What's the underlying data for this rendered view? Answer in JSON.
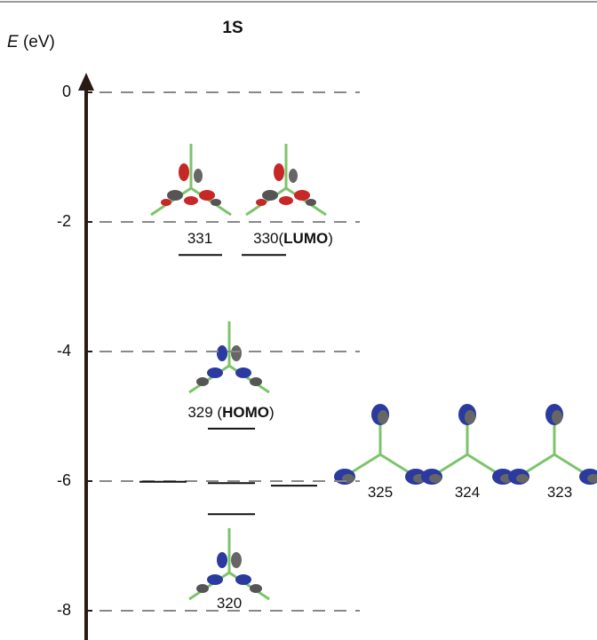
{
  "chart_data": {
    "type": "levels",
    "title": "1S",
    "y_label_parts": [
      "E",
      " (eV)"
    ],
    "ylim": [
      -8.45,
      0.25
    ],
    "yticks": [
      0,
      -2,
      -4,
      -6,
      -8
    ],
    "grid": true,
    "levels": [
      {
        "label_parts": [
          "331"
        ],
        "value": -2.51
      },
      {
        "label_parts": [
          "330(",
          "LUMO",
          ")"
        ],
        "value": -2.51
      },
      {
        "label_parts": [
          "329 (",
          "HOMO",
          ")"
        ],
        "value": -5.19
      },
      {
        "label_parts": [
          "325"
        ],
        "value": -6.01
      },
      {
        "label_parts": [
          "324"
        ],
        "value": -6.03
      },
      {
        "label_parts": [
          "323"
        ],
        "value": -6.07
      },
      {
        "label_parts": [
          "320"
        ],
        "value": -6.51
      }
    ]
  }
}
